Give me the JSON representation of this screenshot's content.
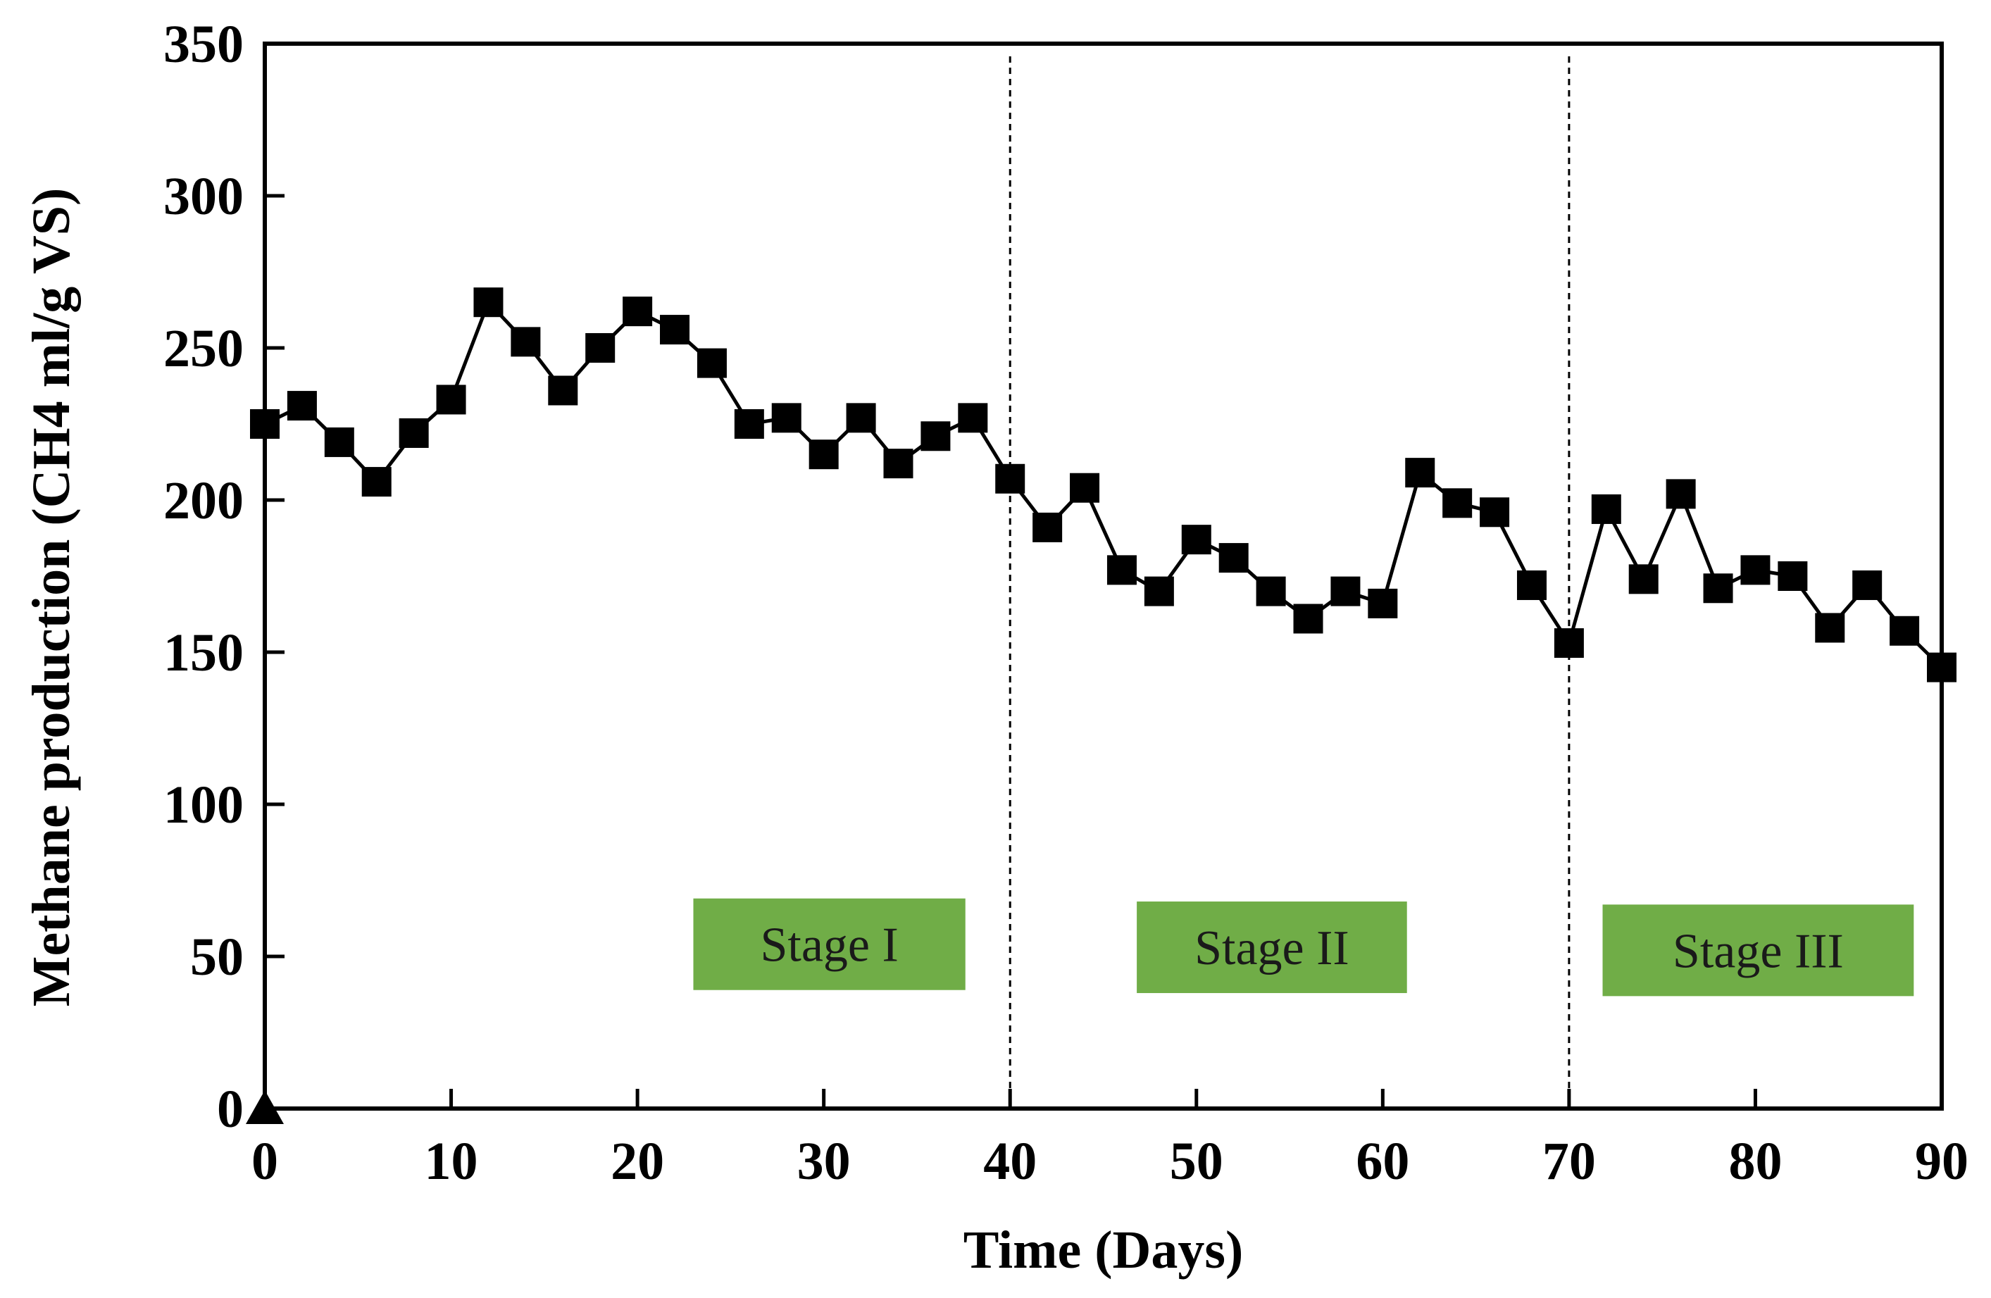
{
  "chart_data": {
    "type": "line",
    "title": "",
    "xlabel": "Time (Days)",
    "ylabel": "Methane production (CH4 ml/g VS)",
    "xlim": [
      0,
      90
    ],
    "ylim": [
      0,
      350
    ],
    "xticks": [
      0,
      10,
      20,
      30,
      40,
      50,
      60,
      70,
      80,
      90
    ],
    "yticks": [
      0,
      50,
      100,
      150,
      200,
      250,
      300,
      350
    ],
    "xtick_labels": [
      "0",
      "10",
      "20",
      "30",
      "40",
      "50",
      "60",
      "70",
      "80",
      "90"
    ],
    "ytick_labels": [
      "0",
      "50",
      "100",
      "150",
      "200",
      "250",
      "300",
      "350"
    ],
    "grid": false,
    "series": [
      {
        "name": "Methane production",
        "marker": "square",
        "color": "#000000",
        "x": [
          0,
          2,
          4,
          6,
          8,
          10,
          12,
          14,
          16,
          18,
          20,
          22,
          24,
          26,
          28,
          30,
          32,
          34,
          36,
          38,
          40,
          42,
          44,
          46,
          48,
          50,
          52,
          54,
          56,
          58,
          60,
          62,
          64,
          66,
          68,
          70,
          72,
          74,
          76,
          78,
          80,
          82,
          84,
          86,
          88,
          90
        ],
        "y": [
          225,
          231,
          219,
          206,
          222,
          233,
          265,
          252,
          236,
          250,
          262,
          256,
          245,
          225,
          227,
          215,
          227,
          212,
          221,
          227,
          207,
          191,
          204,
          177,
          170,
          187,
          181,
          170,
          161,
          170,
          166,
          209,
          199,
          196,
          172,
          153,
          197,
          174,
          202,
          171,
          177,
          175,
          158,
          172,
          157,
          145
        ]
      }
    ],
    "extra_markers": [
      {
        "x": 0,
        "y": 0,
        "marker": "triangle",
        "color": "#000000"
      }
    ],
    "stage_dividers": [
      40,
      70
    ],
    "stages": [
      {
        "label": "Stage I",
        "x_start": 23,
        "x_end": 37.6,
        "y": 54
      },
      {
        "label": "Stage II",
        "x_start": 46.8,
        "x_end": 61.3,
        "y": 53
      },
      {
        "label": "Stage III",
        "x_start": 71.8,
        "x_end": 88.5,
        "y": 52
      }
    ],
    "stage_color": "#70ad47"
  }
}
